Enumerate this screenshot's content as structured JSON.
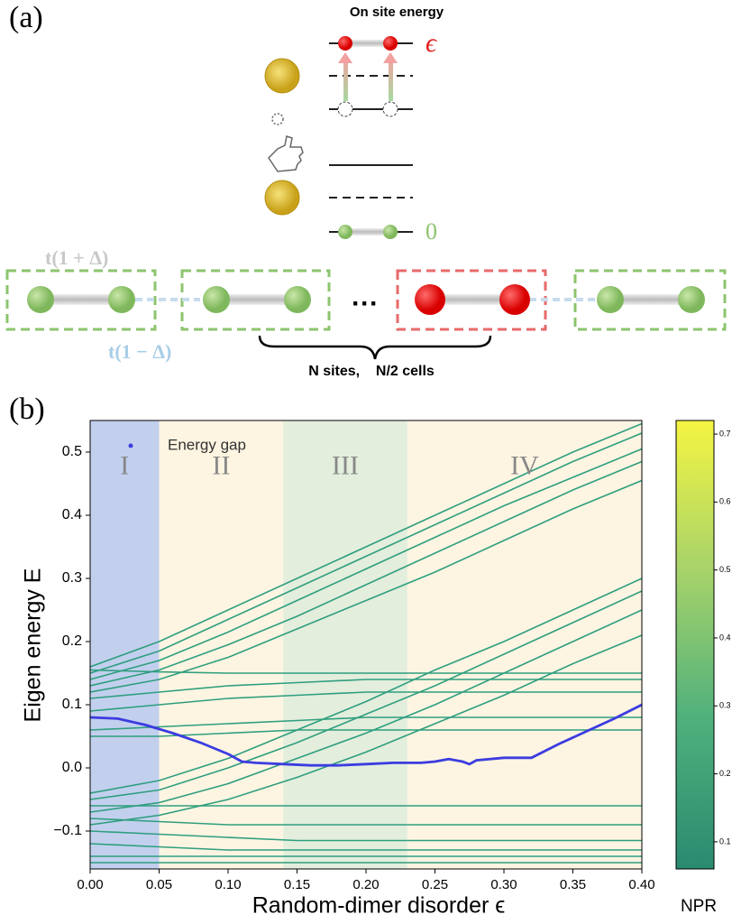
{
  "panel_a": {
    "label": "(a)",
    "title": "On site energy",
    "epsilon": "ϵ",
    "zero": "0",
    "intra_hopping": "t(1 + Δ)",
    "inter_hopping": "t(1 − Δ)",
    "ellipsis": "···",
    "brace_label": "N sites,    N/2 cells"
  },
  "chart_data": {
    "type": "line",
    "panel_label": "(b)",
    "xlabel": "Random-dimer disorder ϵ",
    "ylabel": "Eigen energy E",
    "xlim": [
      0,
      0.4
    ],
    "ylim": [
      -0.16,
      0.55
    ],
    "xticks": [
      {
        "value": 0,
        "label": "0.00"
      },
      {
        "value": 0.05,
        "label": "0.05"
      },
      {
        "value": 0.1,
        "label": "0.10"
      },
      {
        "value": 0.15,
        "label": "0.15"
      },
      {
        "value": 0.2,
        "label": "0.20"
      },
      {
        "value": 0.25,
        "label": "0.25"
      },
      {
        "value": 0.3,
        "label": "0.30"
      },
      {
        "value": 0.35,
        "label": "0.35"
      },
      {
        "value": 0.4,
        "label": "0.40"
      }
    ],
    "yticks": [
      {
        "value": -0.1,
        "label": "−0.1"
      },
      {
        "value": 0,
        "label": "0.0"
      },
      0.1,
      0.2,
      0.3,
      0.4,
      0.5
    ],
    "regions": [
      {
        "label": "I",
        "range": [
          0,
          0.05
        ],
        "color": "#c2d0ee"
      },
      {
        "label": "II",
        "range": [
          0.05,
          0.14
        ],
        "color": "#fdf5e2"
      },
      {
        "label": "III",
        "range": [
          0.14,
          0.23
        ],
        "color": "#e3eedd"
      },
      {
        "label": "IV",
        "range": [
          0.23,
          0.4
        ],
        "color": "#fdf5e2"
      }
    ],
    "levels": {
      "color": "#2f9e7e",
      "x": [
        0,
        0.05,
        0.1,
        0.15,
        0.2,
        0.25,
        0.3,
        0.35,
        0.4
      ],
      "lines": [
        [
          0.16,
          0.2,
          0.25,
          0.3,
          0.35,
          0.4,
          0.45,
          0.5,
          0.545
        ],
        [
          0.15,
          0.185,
          0.235,
          0.285,
          0.335,
          0.385,
          0.435,
          0.485,
          0.53
        ],
        [
          0.14,
          0.17,
          0.215,
          0.265,
          0.315,
          0.365,
          0.415,
          0.46,
          0.505
        ],
        [
          0.13,
          0.155,
          0.195,
          0.24,
          0.29,
          0.34,
          0.39,
          0.44,
          0.485
        ],
        [
          0.12,
          0.14,
          0.175,
          0.22,
          0.265,
          0.31,
          0.36,
          0.41,
          0.455
        ],
        [
          0.155,
          0.152,
          0.15,
          0.15,
          0.15,
          0.15,
          0.15,
          0.15,
          0.15
        ],
        [
          0.11,
          0.12,
          0.13,
          0.135,
          0.14,
          0.14,
          0.14,
          0.14,
          0.14
        ],
        [
          0.09,
          0.1,
          0.11,
          0.115,
          0.12,
          0.12,
          0.12,
          0.12,
          0.12
        ],
        [
          0.06,
          0.065,
          0.07,
          0.075,
          0.08,
          0.08,
          0.08,
          0.08,
          0.08
        ],
        [
          0.05,
          0.05,
          0.055,
          0.06,
          0.06,
          0.06,
          0.06,
          0.06,
          0.06
        ],
        [
          -0.04,
          -0.02,
          0.015,
          0.06,
          0.105,
          0.155,
          0.2,
          0.25,
          0.3
        ],
        [
          -0.05,
          -0.035,
          0.0,
          0.04,
          0.085,
          0.13,
          0.18,
          0.23,
          0.28
        ],
        [
          -0.07,
          -0.055,
          -0.025,
          0.015,
          0.055,
          0.1,
          0.15,
          0.2,
          0.25
        ],
        [
          -0.09,
          -0.075,
          -0.05,
          -0.015,
          0.025,
          0.07,
          0.115,
          0.165,
          0.21
        ],
        [
          -0.06,
          -0.06,
          -0.06,
          -0.06,
          -0.06,
          -0.06,
          -0.06,
          -0.06,
          -0.06
        ],
        [
          -0.08,
          -0.085,
          -0.09,
          -0.09,
          -0.09,
          -0.09,
          -0.09,
          -0.09,
          -0.09
        ],
        [
          -0.1,
          -0.105,
          -0.11,
          -0.115,
          -0.115,
          -0.115,
          -0.115,
          -0.115,
          -0.115
        ],
        [
          -0.12,
          -0.125,
          -0.13,
          -0.13,
          -0.13,
          -0.13,
          -0.13,
          -0.13,
          -0.13
        ],
        [
          -0.14,
          -0.14,
          -0.14,
          -0.14,
          -0.14,
          -0.14,
          -0.14,
          -0.14,
          -0.14
        ],
        [
          -0.15,
          -0.15,
          -0.15,
          -0.15,
          -0.15,
          -0.15,
          -0.15,
          -0.15,
          -0.15
        ]
      ]
    },
    "series": [
      {
        "name": "Energy gap",
        "color": "#3c3ce0",
        "x": [
          0,
          0.02,
          0.04,
          0.06,
          0.08,
          0.1,
          0.11,
          0.12,
          0.14,
          0.16,
          0.18,
          0.2,
          0.22,
          0.24,
          0.25,
          0.26,
          0.27,
          0.275,
          0.28,
          0.3,
          0.32,
          0.34,
          0.36,
          0.38,
          0.4
        ],
        "values": [
          0.08,
          0.078,
          0.068,
          0.055,
          0.04,
          0.022,
          0.01,
          0.008,
          0.006,
          0.004,
          0.004,
          0.006,
          0.008,
          0.008,
          0.01,
          0.014,
          0.01,
          0.006,
          0.012,
          0.016,
          0.016,
          0.038,
          0.058,
          0.078,
          0.1
        ]
      }
    ],
    "colorbar": {
      "label": "NPR",
      "lim": [
        0.06,
        0.72
      ],
      "ticks": [
        0.1,
        0.2,
        0.3,
        0.4,
        0.5,
        0.6,
        0.7
      ],
      "colors": [
        "#2a8a70",
        "#4fb07c",
        "#a7d36a",
        "#f5f542"
      ]
    }
  }
}
